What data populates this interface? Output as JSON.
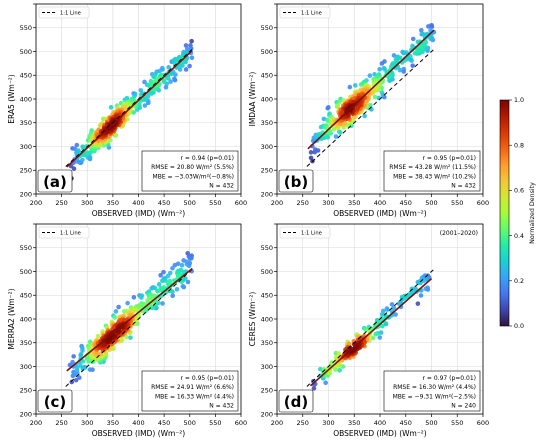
{
  "colors": {
    "regression_line": "#7a1010",
    "one_to_one_line": "#000000",
    "grid": "#d9d9d9",
    "frame": "#000000",
    "colormap": [
      "#30123b",
      "#4145ab",
      "#4675ed",
      "#39a2fc",
      "#1bcfd4",
      "#24eca6",
      "#61fc6c",
      "#a4fc3b",
      "#d1e834",
      "#f3c63a",
      "#fe9b2d",
      "#f36315",
      "#d93806",
      "#b11901",
      "#7a0402"
    ]
  },
  "colorbar": {
    "label": "Normalized Density",
    "ticks": [
      "0.0",
      "0.2",
      "0.4",
      "0.6",
      "0.8",
      "1.0"
    ]
  },
  "chart_data": [
    {
      "type": "scatter",
      "panel_letter": "(a)",
      "ylabel": "ERA5  (Wm⁻²)",
      "xlabel": "OBSERVED (IMD) (Wm⁻²)",
      "xlim": [
        200,
        600
      ],
      "ylim": [
        200,
        600
      ],
      "xticks": [
        "200",
        "250",
        "300",
        "350",
        "400",
        "450",
        "500",
        "550",
        "600"
      ],
      "yticks": [
        "200",
        "250",
        "300",
        "350",
        "400",
        "450",
        "500",
        "550",
        "600"
      ],
      "grid": true,
      "legend": {
        "label": "1:1 Line",
        "position": "top-left"
      },
      "period": "",
      "regression": {
        "slope": 1.0,
        "intercept": -3,
        "x_range": [
          260,
          505
        ]
      },
      "cloud": {
        "bias": -3,
        "spread": 14,
        "x_range": [
          265,
          505
        ],
        "n": 432
      },
      "stats": [
        "r  = 0.94 (p=0.01)",
        "RMSE = 20.80 W/m² (5.5%)",
        "MBE = −3.03W/m²(−0.8%)",
        "N = 432"
      ]
    },
    {
      "type": "scatter",
      "panel_letter": "(b)",
      "ylabel": "IMDAA  (Wm⁻²)",
      "xlabel": "OBSERVED (IMD) (Wm⁻²)",
      "xlim": [
        200,
        600
      ],
      "ylim": [
        200,
        600
      ],
      "xticks": [
        "200",
        "250",
        "300",
        "350",
        "400",
        "450",
        "500",
        "550",
        "600"
      ],
      "yticks": [
        "200",
        "250",
        "300",
        "350",
        "400",
        "450",
        "500",
        "550",
        "600"
      ],
      "grid": true,
      "legend": {
        "label": "1:1 Line",
        "position": "top-left"
      },
      "period": "",
      "regression": {
        "slope": 1.02,
        "intercept": 30,
        "x_range": [
          260,
          505
        ]
      },
      "cloud": {
        "bias": 38,
        "spread": 17,
        "x_range": [
          265,
          505
        ],
        "n": 432
      },
      "stats": [
        "r  = 0.95 (p=0.01)",
        "RMSE = 43.28 W/m² (11.5%)",
        "MBE = 38.43 W/m² (10.2%)",
        "N = 432"
      ]
    },
    {
      "type": "scatter",
      "panel_letter": "(c)",
      "ylabel": "MERRA2  (Wm⁻²)",
      "xlabel": "OBSERVED (IMD) (Wm⁻²)",
      "xlim": [
        200,
        600
      ],
      "ylim": [
        200,
        600
      ],
      "xticks": [
        "200",
        "250",
        "300",
        "350",
        "400",
        "450",
        "500",
        "550",
        "600"
      ],
      "yticks": [
        "200",
        "250",
        "300",
        "350",
        "400",
        "450",
        "500",
        "550",
        "600"
      ],
      "grid": true,
      "legend": {
        "label": "1:1 Line",
        "position": "top-left"
      },
      "period": "",
      "regression": {
        "slope": 0.88,
        "intercept": 62,
        "x_range": [
          260,
          505
        ]
      },
      "cloud": {
        "bias": 16,
        "spread": 16,
        "x_range": [
          265,
          505
        ],
        "n": 432
      },
      "stats": [
        "r  = 0.95 (p=0.01)",
        "RMSE = 24.91 W/m² (6.6%)",
        "MBE = 16.33 W/m² (4.4%)",
        "N = 432"
      ]
    },
    {
      "type": "scatter",
      "panel_letter": "(d)",
      "ylabel": "CERES  (Wm⁻²)",
      "xlabel": "OBSERVED (IMD) (Wm⁻²)",
      "xlim": [
        200,
        600
      ],
      "ylim": [
        200,
        600
      ],
      "xticks": [
        "200",
        "250",
        "300",
        "350",
        "400",
        "450",
        "500",
        "550",
        "600"
      ],
      "yticks": [
        "200",
        "250",
        "300",
        "350",
        "400",
        "450",
        "500",
        "550",
        "600"
      ],
      "grid": true,
      "legend": {
        "label": "1:1 Line",
        "position": "top-left"
      },
      "period": "(2001–2020)",
      "regression": {
        "slope": 0.96,
        "intercept": 5,
        "x_range": [
          265,
          500
        ]
      },
      "cloud": {
        "bias": -9,
        "spread": 10,
        "x_range": [
          270,
          500
        ],
        "n": 240
      },
      "stats": [
        "r  = 0.97 (p=0.01)",
        "RMSE = 16.30 W/m² (4.4%)",
        "MBE = −9.31 W/m²(−2.5%)",
        "N = 240"
      ]
    }
  ]
}
